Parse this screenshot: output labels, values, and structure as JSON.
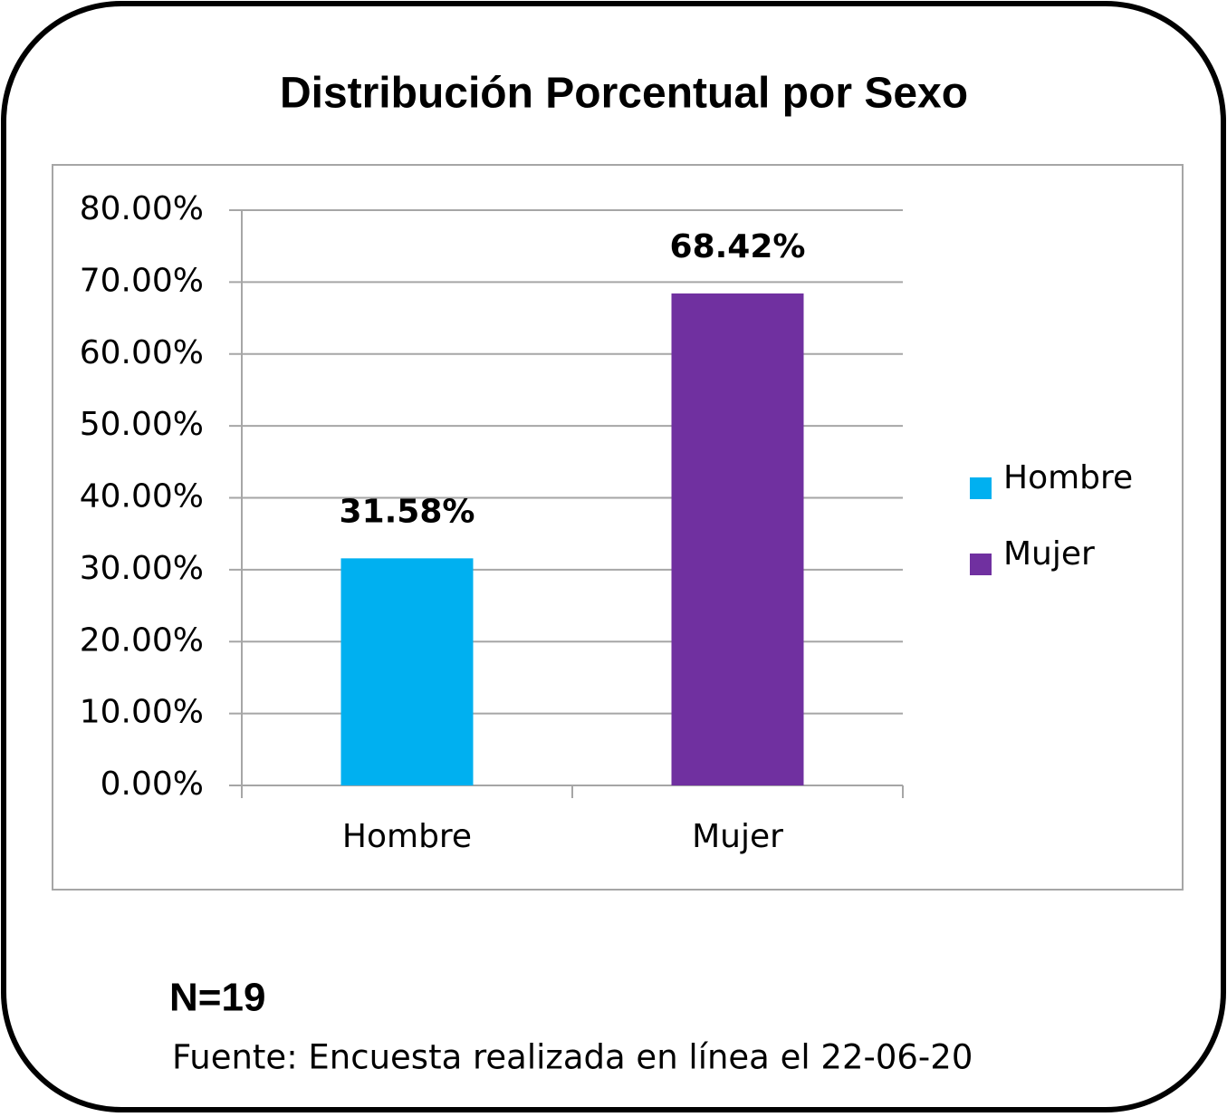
{
  "chart_data": {
    "type": "bar",
    "title": "Distribución Porcentual por Sexo",
    "categories": [
      "Hombre",
      "Mujer"
    ],
    "values": [
      31.58,
      68.42
    ],
    "value_labels": [
      "31.58%",
      "68.42%"
    ],
    "colors": [
      "#00b0f0",
      "#7030a0"
    ],
    "ylim": [
      0,
      80
    ],
    "yticks": [
      {
        "value": 0,
        "label": "0.00%"
      },
      {
        "value": 10,
        "label": "10.00%"
      },
      {
        "value": 20,
        "label": "20.00%"
      },
      {
        "value": 30,
        "label": "30.00%"
      },
      {
        "value": 40,
        "label": "40.00%"
      },
      {
        "value": 50,
        "label": "50.00%"
      },
      {
        "value": 60,
        "label": "60.00%"
      },
      {
        "value": 70,
        "label": "70.00%"
      },
      {
        "value": 80,
        "label": "80.00%"
      }
    ],
    "grid": true,
    "legend": "right",
    "note": "N=19",
    "source": "Fuente: Encuesta realizada en línea el 22-06-20"
  }
}
